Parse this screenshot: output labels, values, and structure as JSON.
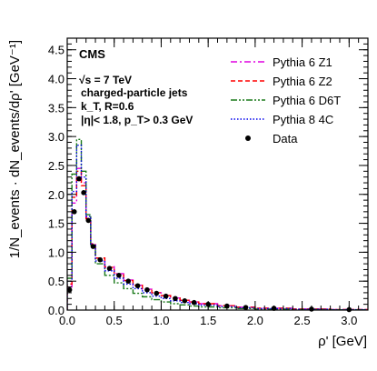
{
  "chart_data": {
    "type": "line",
    "xlabel": "ρ' [GeV]",
    "ylabel": "1/N_events · dN_events/dρ' [GeV⁻¹]",
    "xlim": [
      0.0,
      3.2
    ],
    "ylim": [
      0.0,
      4.7
    ],
    "x_ticks": [
      "0.0",
      "0.5",
      "1.0",
      "1.5",
      "2.0",
      "2.5",
      "3.0"
    ],
    "y_ticks": [
      "0.0",
      "0.5",
      "1.0",
      "1.5",
      "2.0",
      "2.5",
      "3.0",
      "3.5",
      "4.0",
      "4.5"
    ],
    "grid": false,
    "legend_position": "top-right",
    "annotations": {
      "experiment": "CMS",
      "energy": "√s = 7 TeV",
      "selection": "charged-particle jets",
      "algorithm": "k_T, R=0.6",
      "cuts": "|η|< 1.8, p_T> 0.3 GeV"
    },
    "bin_edges": [
      0.0,
      0.05,
      0.1,
      0.15,
      0.2,
      0.25,
      0.3,
      0.4,
      0.5,
      0.6,
      0.7,
      0.8,
      0.9,
      1.0,
      1.1,
      1.2,
      1.3,
      1.4,
      1.6,
      1.8,
      2.0,
      2.4,
      2.8,
      3.2
    ],
    "series": [
      {
        "name": "Pythia 6 Z1",
        "color": "#e000e0",
        "style": "dashdot",
        "values": [
          0.4,
          1.85,
          2.45,
          2.2,
          1.6,
          1.15,
          0.9,
          0.75,
          0.63,
          0.52,
          0.43,
          0.36,
          0.3,
          0.25,
          0.21,
          0.17,
          0.14,
          0.11,
          0.075,
          0.05,
          0.032,
          0.018,
          0.008
        ]
      },
      {
        "name": "Pythia 6 Z2",
        "color": "#ff0000",
        "style": "dashed",
        "values": [
          0.45,
          1.95,
          2.4,
          2.15,
          1.58,
          1.14,
          0.9,
          0.74,
          0.62,
          0.51,
          0.43,
          0.36,
          0.3,
          0.25,
          0.21,
          0.17,
          0.14,
          0.11,
          0.075,
          0.05,
          0.032,
          0.018,
          0.008
        ]
      },
      {
        "name": "Pythia 6 D6T",
        "color": "#1a7a1a",
        "style": "dashdotdot",
        "values": [
          0.55,
          2.35,
          2.95,
          2.4,
          1.65,
          1.1,
          0.8,
          0.6,
          0.47,
          0.37,
          0.29,
          0.23,
          0.18,
          0.14,
          0.11,
          0.09,
          0.07,
          0.055,
          0.04,
          0.027,
          0.017,
          0.009,
          0.004
        ]
      },
      {
        "name": "Pythia 8 4C",
        "color": "#0000ee",
        "style": "dotted",
        "values": [
          0.5,
          2.05,
          2.85,
          2.3,
          1.62,
          1.12,
          0.85,
          0.68,
          0.55,
          0.45,
          0.37,
          0.3,
          0.24,
          0.2,
          0.16,
          0.13,
          0.11,
          0.085,
          0.06,
          0.04,
          0.025,
          0.013,
          0.006
        ]
      }
    ],
    "data": {
      "name": "Data",
      "color": "#000000",
      "x": [
        0.025,
        0.075,
        0.125,
        0.175,
        0.225,
        0.275,
        0.35,
        0.45,
        0.55,
        0.65,
        0.75,
        0.85,
        0.95,
        1.05,
        1.15,
        1.25,
        1.35,
        1.5,
        1.7,
        1.9,
        2.2,
        2.6,
        3.0
      ],
      "y": [
        0.35,
        1.7,
        2.27,
        2.03,
        1.55,
        1.1,
        0.87,
        0.72,
        0.6,
        0.5,
        0.42,
        0.35,
        0.29,
        0.24,
        0.2,
        0.16,
        0.13,
        0.1,
        0.07,
        0.045,
        0.03,
        0.017,
        0.008
      ]
    }
  }
}
